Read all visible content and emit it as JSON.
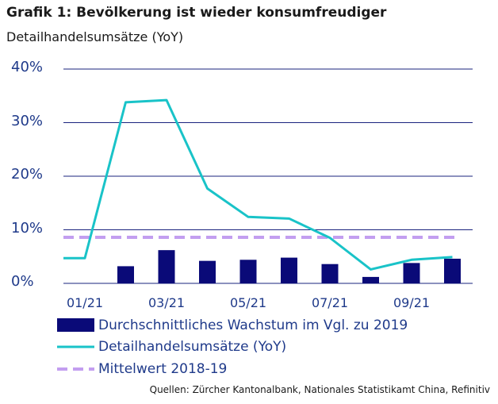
{
  "title": "Grafik 1: Bevölkerung ist wieder konsumfreudiger",
  "subtitle": "Detailhandelsumsätze (YoY)",
  "source": "Quellen: Zürcher Kantonalbank, Nationales Statistikamt China, Refinitiv",
  "colors": {
    "bars": "#0a0a78",
    "line": "#19c3c8",
    "mean": "#c39ef0",
    "gridline": "#1a237e",
    "axis_text": "#1f3a8a"
  },
  "chart_data": {
    "type": "bar",
    "title": "Grafik 1: Bevölkerung ist wieder konsumfreudiger",
    "subtitle": "Detailhandelsumsätze (YoY)",
    "ylim": [
      0,
      40
    ],
    "yticks": [
      "0%",
      "10%",
      "20%",
      "30%",
      "40%"
    ],
    "ytick_values": [
      0,
      10,
      20,
      30,
      40
    ],
    "xticks": [
      "01/21",
      "03/21",
      "05/21",
      "07/21",
      "09/21"
    ],
    "xtick_months": [
      1,
      3,
      5,
      7,
      9
    ],
    "grid": true,
    "legend_placement": "bottom",
    "series": [
      {
        "name": "Durchschnittliches Wachstum im Vgl. zu 2019",
        "type": "bar",
        "months": [
          2,
          3,
          4,
          5,
          6,
          7,
          8,
          9,
          10
        ],
        "values": [
          3.2,
          6.2,
          4.2,
          4.4,
          4.8,
          3.6,
          1.2,
          3.8,
          4.6
        ]
      },
      {
        "name": "Detailhandelsumsätze (YoY)",
        "type": "line",
        "months": [
          0.5,
          1,
          2,
          3,
          4,
          5,
          6,
          7,
          8,
          9,
          10
        ],
        "values": [
          4.7,
          4.7,
          33.8,
          34.2,
          17.7,
          12.4,
          12.1,
          8.5,
          2.6,
          4.4,
          4.9
        ]
      },
      {
        "name": "Mittelwert 2018-19",
        "type": "line-dashed",
        "value": 8.6
      }
    ]
  }
}
